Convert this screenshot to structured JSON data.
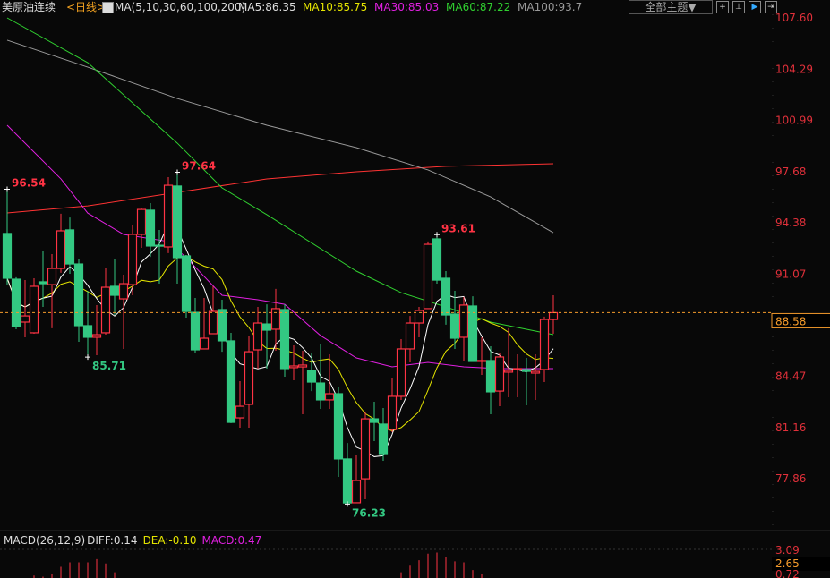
{
  "header": {
    "symbol": "美原油连续",
    "period": "<日线>",
    "ma_label": "MA(5,10,30,60,100,200)",
    "ma5": "MA5:86.35",
    "ma10": "MA10:85.75",
    "ma30": "MA30:85.03",
    "ma60": "MA60:87.22",
    "ma100": "MA100:93.7",
    "theme_button": "全部主题▼",
    "tools": [
      "crosshair-icon",
      "zoom-range-icon",
      "play-icon",
      "exit-icon"
    ]
  },
  "colors": {
    "up": "#ff3344",
    "down": "#33c882",
    "ma5": "#ffffff",
    "ma10": "#e5e500",
    "ma30": "#e020e0",
    "ma60": "#30d030",
    "ma100": "#9a9a9a",
    "ma200": "#ff3333",
    "current": "#f39a2b"
  },
  "chart_data": {
    "type": "candlestick",
    "price_axis": {
      "ticks": [
        "107.60",
        "104.29",
        "100.99",
        "97.68",
        "94.38",
        "91.07",
        "84.47",
        "81.16",
        "77.86"
      ],
      "range": [
        77.86,
        107.6
      ],
      "current_price": "88.58"
    },
    "annotations": [
      {
        "index": 0,
        "label": "96.54",
        "kind": "high"
      },
      {
        "index": 9,
        "label": "85.71",
        "kind": "low"
      },
      {
        "index": 19,
        "label": "97.64",
        "kind": "high"
      },
      {
        "index": 38,
        "label": "76.23",
        "kind": "low"
      },
      {
        "index": 48,
        "label": "93.61",
        "kind": "high"
      }
    ],
    "candles": [
      [
        93.69,
        96.54,
        90.39,
        90.8
      ],
      [
        90.74,
        90.86,
        87.51,
        87.68
      ],
      [
        87.97,
        90.68,
        86.99,
        88.37
      ],
      [
        87.28,
        90.8,
        87.22,
        90.28
      ],
      [
        90.57,
        92.53,
        88.95,
        90.45
      ],
      [
        90.39,
        92.36,
        87.57,
        91.43
      ],
      [
        91.43,
        94.96,
        91.15,
        93.86
      ],
      [
        93.92,
        94.72,
        91.09,
        91.72
      ],
      [
        91.72,
        92.01,
        86.7,
        87.74
      ],
      [
        87.74,
        89.99,
        85.71,
        86.99
      ],
      [
        86.99,
        89.07,
        85.83,
        87.16
      ],
      [
        87.28,
        91.49,
        87.16,
        90.22
      ],
      [
        90.28,
        92.01,
        88.43,
        89.7
      ],
      [
        89.47,
        91.03,
        86.24,
        90.45
      ],
      [
        90.39,
        94.21,
        89.7,
        93.63
      ],
      [
        93.63,
        95.3,
        92.76,
        95.24
      ],
      [
        95.19,
        95.65,
        92.18,
        92.88
      ],
      [
        92.93,
        93.92,
        90.45,
        92.88
      ],
      [
        92.82,
        97.32,
        92.42,
        96.8
      ],
      [
        96.75,
        97.64,
        90.45,
        92.13
      ],
      [
        92.24,
        92.3,
        88.26,
        88.66
      ],
      [
        88.6,
        89.53,
        85.95,
        86.18
      ],
      [
        86.24,
        89.53,
        86.24,
        86.93
      ],
      [
        87.22,
        90.28,
        87.22,
        88.66
      ],
      [
        88.78,
        89.41,
        86.06,
        86.76
      ],
      [
        86.76,
        87.28,
        81.45,
        81.5
      ],
      [
        81.79,
        84.16,
        81.16,
        82.54
      ],
      [
        82.66,
        87.1,
        81.16,
        86.06
      ],
      [
        86.18,
        88.95,
        84.97,
        87.91
      ],
      [
        87.85,
        89.12,
        84.97,
        87.45
      ],
      [
        87.51,
        90.11,
        86.12,
        88.84
      ],
      [
        88.78,
        89.12,
        84.45,
        84.97
      ],
      [
        85.03,
        86.47,
        84.22,
        85.14
      ],
      [
        85.08,
        86.12,
        82.02,
        85.2
      ],
      [
        84.85,
        86.01,
        83.52,
        84.1
      ],
      [
        84.04,
        86.58,
        82.37,
        82.95
      ],
      [
        82.95,
        85.89,
        82.37,
        83.35
      ],
      [
        83.35,
        83.81,
        77.98,
        79.14
      ],
      [
        79.14,
        80.17,
        76.23,
        76.3
      ],
      [
        76.31,
        79.37,
        76.31,
        77.75
      ],
      [
        77.86,
        82.2,
        76.54,
        81.73
      ],
      [
        81.73,
        82.83,
        80.29,
        81.5
      ],
      [
        81.39,
        82.43,
        79.02,
        79.48
      ],
      [
        81.04,
        84.39,
        80.87,
        83.18
      ],
      [
        83.18,
        86.87,
        82.95,
        86.24
      ],
      [
        86.24,
        88.37,
        85.37,
        87.91
      ],
      [
        87.91,
        88.95,
        86.99,
        88.72
      ],
      [
        88.84,
        93.17,
        88.84,
        92.99
      ],
      [
        93.34,
        93.61,
        90.45,
        90.68
      ],
      [
        90.8,
        91.26,
        87.8,
        88.43
      ],
      [
        88.49,
        89.99,
        86.24,
        86.93
      ],
      [
        86.99,
        89.59,
        85.49,
        89.07
      ],
      [
        89.01,
        89.64,
        85.43,
        85.43
      ],
      [
        85.49,
        86.99,
        84.56,
        85.49
      ],
      [
        85.49,
        86.41,
        82.02,
        83.47
      ],
      [
        83.52,
        85.95,
        82.54,
        85.72
      ],
      [
        84.74,
        87.57,
        83.12,
        84.85
      ],
      [
        84.91,
        85.89,
        83.12,
        84.97
      ],
      [
        84.91,
        85.66,
        82.6,
        84.79
      ],
      [
        84.68,
        85.89,
        82.95,
        84.79
      ],
      [
        84.91,
        88.32,
        84.1,
        88.14
      ],
      [
        88.14,
        89.7,
        87.22,
        88.58
      ]
    ],
    "ma_lines": {
      "ma30": [
        [
          0,
          100.67
        ],
        [
          6,
          97.21
        ],
        [
          9,
          95.0
        ],
        [
          13,
          93.63
        ],
        [
          18,
          93.17
        ],
        [
          20,
          92.13
        ],
        [
          24,
          89.7
        ],
        [
          28,
          89.41
        ],
        [
          31,
          89.12
        ],
        [
          35,
          87.1
        ],
        [
          39,
          85.66
        ],
        [
          43,
          85.08
        ],
        [
          47,
          85.37
        ],
        [
          51,
          85.08
        ],
        [
          55,
          84.97
        ],
        [
          61,
          84.97
        ]
      ],
      "ma60": [
        [
          0,
          107.6
        ],
        [
          9,
          104.71
        ],
        [
          19,
          99.52
        ],
        [
          24,
          96.63
        ],
        [
          29,
          94.9
        ],
        [
          39,
          91.26
        ],
        [
          44,
          89.87
        ],
        [
          49,
          88.95
        ],
        [
          54,
          87.97
        ],
        [
          61,
          87.16
        ]
      ],
      "ma100": [
        [
          0,
          106.16
        ],
        [
          9,
          104.42
        ],
        [
          19,
          102.4
        ],
        [
          29,
          100.67
        ],
        [
          39,
          99.23
        ],
        [
          47,
          97.79
        ],
        [
          54,
          96.05
        ],
        [
          61,
          93.74
        ]
      ],
      "ma200": [
        [
          0,
          95.01
        ],
        [
          9,
          95.47
        ],
        [
          19,
          96.34
        ],
        [
          29,
          97.21
        ],
        [
          39,
          97.67
        ],
        [
          49,
          98.02
        ],
        [
          61,
          98.19
        ]
      ]
    },
    "macd": {
      "title": "MACD(26,12,9)",
      "diff": "DIFF:0.14",
      "dea": "DEA:-0.10",
      "macd": "MACD:0.47",
      "axis": [
        "3.09",
        "2.65",
        "0.72"
      ],
      "histogram": [
        [
          3,
          0.7
        ],
        [
          4,
          0.6
        ],
        [
          5,
          0.8
        ],
        [
          6,
          1.5
        ],
        [
          7,
          1.9
        ],
        [
          8,
          1.9
        ],
        [
          9,
          1.9
        ],
        [
          10,
          2.2
        ],
        [
          11,
          1.8
        ],
        [
          12,
          1.0
        ],
        [
          44,
          1.0
        ],
        [
          45,
          1.6
        ],
        [
          46,
          2.1
        ],
        [
          47,
          2.7
        ],
        [
          48,
          2.8
        ],
        [
          49,
          2.4
        ],
        [
          50,
          2.0
        ],
        [
          51,
          1.9
        ],
        [
          52,
          1.2
        ],
        [
          53,
          0.8
        ]
      ]
    }
  }
}
